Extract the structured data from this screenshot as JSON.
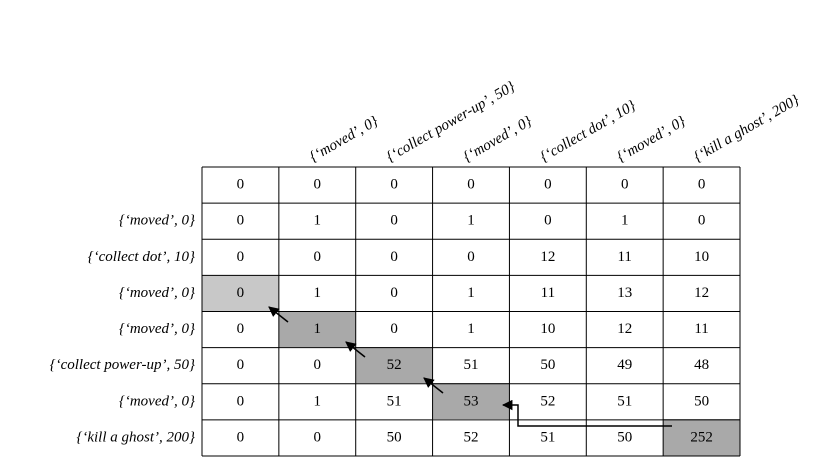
{
  "table": {
    "column_headers": [
      "{‘moved’, 0}",
      "{‘collect power-up’, 50}",
      "{‘moved’, 0}",
      "{‘collect dot’, 10}",
      "{‘moved’, 0}",
      "{‘kill a ghost’, 200}"
    ],
    "rows": [
      {
        "cells": [
          0,
          0,
          0,
          0,
          0,
          0,
          0
        ]
      },
      {
        "label": "{‘moved’, 0}",
        "cells": [
          0,
          1,
          0,
          1,
          0,
          1,
          0
        ]
      },
      {
        "label": "{‘collect dot’, 10}",
        "cells": [
          0,
          0,
          0,
          0,
          12,
          11,
          10
        ]
      },
      {
        "label": "{‘moved’, 0}",
        "cells": [
          0,
          1,
          0,
          1,
          11,
          13,
          12
        ]
      },
      {
        "label": "{‘moved’, 0}",
        "cells": [
          0,
          1,
          0,
          1,
          10,
          12,
          11
        ]
      },
      {
        "label": "{‘collect power-up’, 50}",
        "cells": [
          0,
          0,
          52,
          51,
          50,
          49,
          48
        ]
      },
      {
        "label": "{‘moved’, 0}",
        "cells": [
          0,
          1,
          51,
          53,
          52,
          51,
          50
        ]
      },
      {
        "label": "{‘kill a ghost’, 200}",
        "cells": [
          0,
          0,
          50,
          52,
          51,
          50,
          252
        ]
      }
    ]
  }
}
